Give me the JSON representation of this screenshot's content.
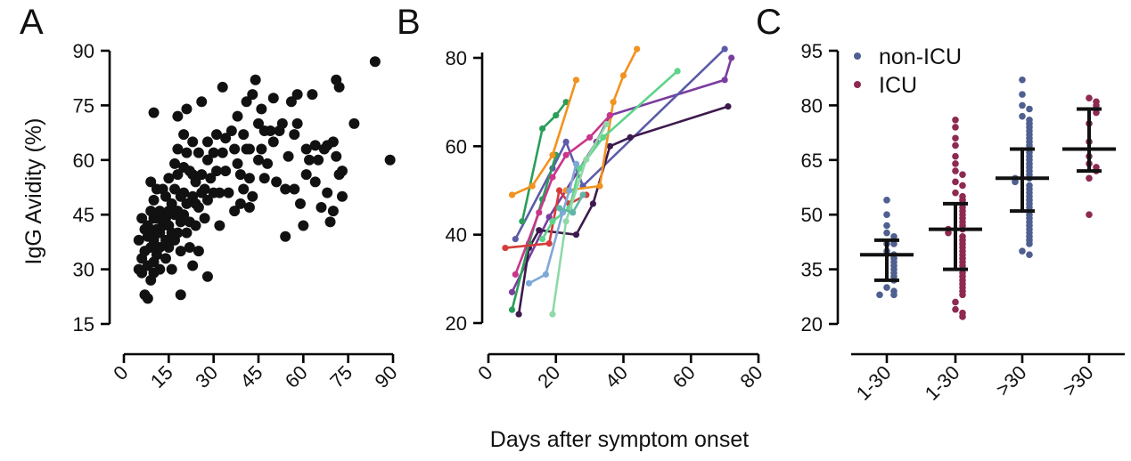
{
  "figure": {
    "x_axis_title": "Days after symptom onset"
  },
  "chart_data": [
    {
      "panel": "A",
      "type": "scatter",
      "ylabel": "IgG Avidity (%)",
      "xlim": [
        0,
        90
      ],
      "ylim": [
        15,
        90
      ],
      "xticks": [
        "0",
        "15",
        "30",
        "45",
        "60",
        "75",
        "90"
      ],
      "yticks": [
        "15",
        "30",
        "45",
        "60",
        "75",
        "90"
      ],
      "color": "#111111",
      "points": [
        [
          5,
          38
        ],
        [
          5,
          30
        ],
        [
          6,
          44
        ],
        [
          6,
          33
        ],
        [
          6,
          29
        ],
        [
          7,
          41
        ],
        [
          7,
          35
        ],
        [
          7,
          23
        ],
        [
          8,
          42
        ],
        [
          8,
          39
        ],
        [
          8,
          31
        ],
        [
          8,
          22
        ],
        [
          9,
          54
        ],
        [
          9,
          46
        ],
        [
          9,
          40
        ],
        [
          9,
          36
        ],
        [
          9,
          27
        ],
        [
          10,
          73
        ],
        [
          10,
          49
        ],
        [
          10,
          44
        ],
        [
          10,
          38
        ],
        [
          10,
          32
        ],
        [
          10,
          29
        ],
        [
          11,
          52
        ],
        [
          11,
          44
        ],
        [
          11,
          41
        ],
        [
          11,
          34
        ],
        [
          12,
          46
        ],
        [
          12,
          40
        ],
        [
          12,
          36
        ],
        [
          12,
          30
        ],
        [
          13,
          52
        ],
        [
          13,
          45
        ],
        [
          13,
          42
        ],
        [
          14,
          50
        ],
        [
          14,
          44
        ],
        [
          14,
          38
        ],
        [
          14,
          33
        ],
        [
          15,
          55
        ],
        [
          15,
          46
        ],
        [
          15,
          42
        ],
        [
          15,
          36
        ],
        [
          16,
          48
        ],
        [
          16,
          40
        ],
        [
          16,
          30
        ],
        [
          17,
          59
        ],
        [
          17,
          52
        ],
        [
          17,
          45
        ],
        [
          17,
          38
        ],
        [
          18,
          72
        ],
        [
          18,
          63
        ],
        [
          18,
          56
        ],
        [
          18,
          46
        ],
        [
          18,
          40
        ],
        [
          19,
          50
        ],
        [
          19,
          43
        ],
        [
          19,
          35
        ],
        [
          19,
          23
        ],
        [
          20,
          67
        ],
        [
          20,
          58
        ],
        [
          20,
          51
        ],
        [
          20,
          45
        ],
        [
          21,
          74
        ],
        [
          21,
          62
        ],
        [
          21,
          48
        ],
        [
          21,
          40
        ],
        [
          22,
          57
        ],
        [
          22,
          43
        ],
        [
          22,
          36
        ],
        [
          23,
          65
        ],
        [
          23,
          56
        ],
        [
          23,
          50
        ],
        [
          23,
          31
        ],
        [
          24,
          54
        ],
        [
          24,
          48
        ],
        [
          24,
          42
        ],
        [
          25,
          62
        ],
        [
          25,
          47
        ],
        [
          25,
          35
        ],
        [
          26,
          76
        ],
        [
          26,
          56
        ],
        [
          26,
          51
        ],
        [
          27,
          52
        ],
        [
          27,
          44
        ],
        [
          28,
          65
        ],
        [
          28,
          60
        ],
        [
          28,
          49
        ],
        [
          28,
          28
        ],
        [
          29,
          55
        ],
        [
          30,
          62
        ],
        [
          30,
          51
        ],
        [
          31,
          67
        ],
        [
          31,
          57
        ],
        [
          32,
          51
        ],
        [
          32,
          42
        ],
        [
          33,
          80
        ],
        [
          33,
          62
        ],
        [
          34,
          66
        ],
        [
          34,
          57
        ],
        [
          35,
          51
        ],
        [
          36,
          68
        ],
        [
          37,
          63
        ],
        [
          37,
          46
        ],
        [
          38,
          72
        ],
        [
          38,
          59
        ],
        [
          39,
          56
        ],
        [
          39,
          48
        ],
        [
          40,
          67
        ],
        [
          40,
          52
        ],
        [
          41,
          76
        ],
        [
          41,
          63
        ],
        [
          42,
          63
        ],
        [
          42,
          55
        ],
        [
          42,
          47
        ],
        [
          43,
          78
        ],
        [
          43,
          50
        ],
        [
          44,
          82
        ],
        [
          45,
          70
        ],
        [
          45,
          60
        ],
        [
          46,
          74
        ],
        [
          46,
          63
        ],
        [
          47,
          68
        ],
        [
          47,
          55
        ],
        [
          48,
          59
        ],
        [
          49,
          68
        ],
        [
          50,
          77
        ],
        [
          50,
          65
        ],
        [
          51,
          54
        ],
        [
          52,
          68
        ],
        [
          53,
          70
        ],
        [
          54,
          52
        ],
        [
          54,
          39
        ],
        [
          55,
          61
        ],
        [
          56,
          76
        ],
        [
          57,
          67
        ],
        [
          57,
          52
        ],
        [
          58,
          78
        ],
        [
          58,
          70
        ],
        [
          59,
          48
        ],
        [
          60,
          42
        ],
        [
          61,
          63
        ],
        [
          61,
          56
        ],
        [
          62,
          60
        ],
        [
          63,
          78
        ],
        [
          64,
          64
        ],
        [
          64,
          54
        ],
        [
          65,
          60
        ],
        [
          66,
          47
        ],
        [
          67,
          63
        ],
        [
          68,
          64
        ],
        [
          68,
          51
        ],
        [
          69,
          43
        ],
        [
          70,
          65
        ],
        [
          70,
          46
        ],
        [
          71,
          82
        ],
        [
          71,
          61
        ],
        [
          72,
          80
        ],
        [
          72,
          56
        ],
        [
          73,
          57
        ],
        [
          73,
          50
        ],
        [
          77,
          70
        ],
        [
          84,
          87
        ],
        [
          89,
          60
        ]
      ]
    },
    {
      "panel": "B",
      "type": "line",
      "xlim": [
        0,
        80
      ],
      "ylim": [
        20,
        80
      ],
      "xticks": [
        "0",
        "20",
        "40",
        "60",
        "80"
      ],
      "yticks": [
        "20",
        "40",
        "60",
        "80"
      ],
      "series": [
        {
          "name": "purple",
          "color": "#7a3d9e",
          "points": [
            [
              7,
              27
            ],
            [
              18,
              44
            ],
            [
              32,
              61
            ],
            [
              36,
              67
            ],
            [
              70,
              75
            ],
            [
              72,
              80
            ]
          ]
        },
        {
          "name": "slate-blue",
          "color": "#5b5ba8",
          "points": [
            [
              8,
              39
            ],
            [
              19,
              55
            ],
            [
              23,
              61
            ],
            [
              28,
              51
            ],
            [
              70,
              82
            ]
          ]
        },
        {
          "name": "dark-purple",
          "color": "#3d1a4d",
          "points": [
            [
              9,
              22
            ],
            [
              12,
              37
            ],
            [
              15,
              41
            ],
            [
              26,
              40
            ],
            [
              31,
              47
            ],
            [
              36,
              60
            ],
            [
              42,
              62
            ],
            [
              71,
              69
            ]
          ]
        },
        {
          "name": "green",
          "color": "#2a9e5a",
          "points": [
            [
              7,
              23
            ],
            [
              12,
              38
            ],
            [
              16,
              48
            ],
            [
              20,
              58
            ]
          ]
        },
        {
          "name": "green-2",
          "color": "#2a9e5a",
          "points": [
            [
              10,
              43
            ],
            [
              16,
              64
            ],
            [
              20,
              67
            ],
            [
              23,
              70
            ]
          ]
        },
        {
          "name": "orange",
          "color": "#f2921f",
          "points": [
            [
              7,
              49
            ],
            [
              13,
              51
            ],
            [
              19,
              58
            ],
            [
              26,
              75
            ]
          ]
        },
        {
          "name": "orange-2",
          "color": "#f2921f",
          "points": [
            [
              23,
              50
            ],
            [
              33,
              51
            ],
            [
              37,
              70
            ],
            [
              40,
              76
            ],
            [
              44,
              82
            ]
          ]
        },
        {
          "name": "magenta",
          "color": "#c9368a",
          "points": [
            [
              8,
              31
            ],
            [
              15,
              45
            ],
            [
              19,
              53
            ],
            [
              23,
              58
            ],
            [
              30,
              62
            ],
            [
              36,
              67
            ]
          ]
        },
        {
          "name": "red",
          "color": "#d63b3b",
          "points": [
            [
              5,
              37
            ],
            [
              18,
              38
            ],
            [
              21,
              50
            ],
            [
              24,
              47
            ],
            [
              29,
              49
            ]
          ]
        },
        {
          "name": "light-green",
          "color": "#5fd38c",
          "points": [
            [
              16,
              39
            ],
            [
              19,
              43
            ],
            [
              24,
              46
            ],
            [
              27,
              55
            ],
            [
              34,
              62
            ],
            [
              56,
              77
            ]
          ]
        },
        {
          "name": "mint",
          "color": "#8fd9a8",
          "points": [
            [
              19,
              22
            ],
            [
              23,
              43
            ],
            [
              29,
              57
            ],
            [
              35,
              65
            ]
          ]
        },
        {
          "name": "light-blue",
          "color": "#7ea8d8",
          "points": [
            [
              12,
              29
            ],
            [
              17,
              31
            ],
            [
              22,
              45
            ],
            [
              24,
              50
            ],
            [
              26,
              56
            ]
          ]
        },
        {
          "name": "teal",
          "color": "#5fb5a6",
          "points": [
            [
              21,
              46
            ],
            [
              25,
              45
            ],
            [
              28,
              49
            ]
          ]
        }
      ]
    },
    {
      "panel": "C",
      "type": "scatter",
      "ylim": [
        20,
        95
      ],
      "yticks": [
        "20",
        "35",
        "50",
        "65",
        "80",
        "95"
      ],
      "categories": [
        "1-30",
        "1-30",
        ">30",
        ">30"
      ],
      "legend": [
        {
          "label": "non-ICU",
          "color": "#4f5f8f"
        },
        {
          "label": "ICU",
          "color": "#8e2a52"
        }
      ],
      "groups": [
        {
          "category": "1-30",
          "legend": "non-ICU",
          "mean": 39,
          "sd_low": 32,
          "sd_high": 43,
          "values": [
            54,
            50,
            47,
            45,
            44,
            42,
            42,
            40,
            39,
            38,
            37,
            36,
            35,
            34,
            33,
            32,
            30,
            29,
            28,
            28
          ]
        },
        {
          "category": "1-30",
          "legend": "ICU",
          "mean": 46,
          "sd_low": 35,
          "sd_high": 53,
          "values": [
            76,
            74,
            71,
            69,
            66,
            64,
            62,
            61,
            59,
            58,
            56,
            55,
            54,
            53,
            52,
            51,
            50,
            49,
            48,
            47,
            46,
            46,
            45,
            44,
            43,
            42,
            41,
            40,
            39,
            38,
            37,
            36,
            35,
            34,
            33,
            32,
            31,
            30,
            29,
            28,
            26,
            24,
            23,
            22
          ]
        },
        {
          "category": ">30",
          "legend": "non-ICU",
          "mean": 60,
          "sd_low": 51,
          "sd_high": 68,
          "values": [
            87,
            83,
            80,
            79,
            77,
            76,
            75,
            74,
            73,
            72,
            71,
            70,
            69,
            68,
            67,
            66,
            65,
            64,
            63,
            62,
            61,
            60,
            60,
            59,
            58,
            57,
            56,
            55,
            54,
            53,
            52,
            51,
            50,
            49,
            48,
            47,
            46,
            45,
            44,
            43,
            42,
            40,
            39
          ]
        },
        {
          "category": ">30",
          "legend": "ICU",
          "mean": 68,
          "sd_low": 62,
          "sd_high": 79,
          "values": [
            82,
            81,
            80,
            79,
            78,
            75,
            70,
            66,
            64,
            63,
            62,
            60,
            50
          ]
        }
      ]
    }
  ]
}
